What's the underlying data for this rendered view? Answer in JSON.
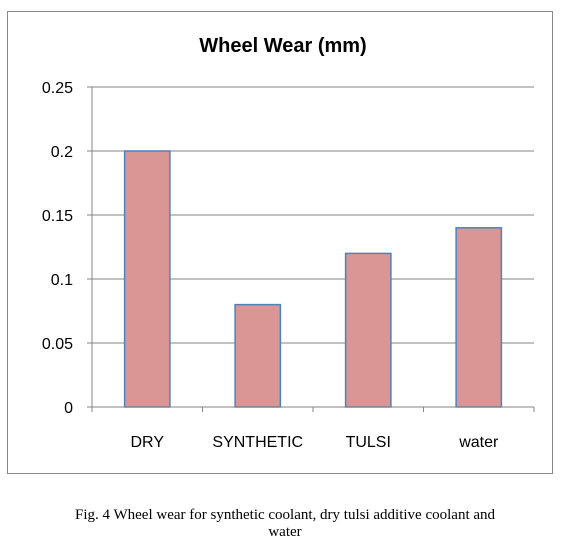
{
  "chart_data": {
    "type": "bar",
    "title": "Wheel Wear (mm)",
    "categories": [
      "DRY",
      "SYNTHETIC",
      "TULSI",
      "water"
    ],
    "values": [
      0.2,
      0.08,
      0.12,
      0.14
    ],
    "xlabel": "",
    "ylabel": "",
    "ylim": [
      0,
      0.25
    ],
    "yticks": [
      "0",
      "0.05",
      "0.1",
      "0.15",
      "0.2",
      "0.25"
    ],
    "grid": true,
    "legend": "none",
    "colors": {
      "bar_fill": "#d99694",
      "bar_stroke": "#4f81bd",
      "grid": "#868686",
      "axis": "#868686"
    }
  },
  "caption": {
    "line1": "Fig. 4 Wheel wear for synthetic coolant, dry tulsi additive coolant and",
    "line2": "water"
  }
}
